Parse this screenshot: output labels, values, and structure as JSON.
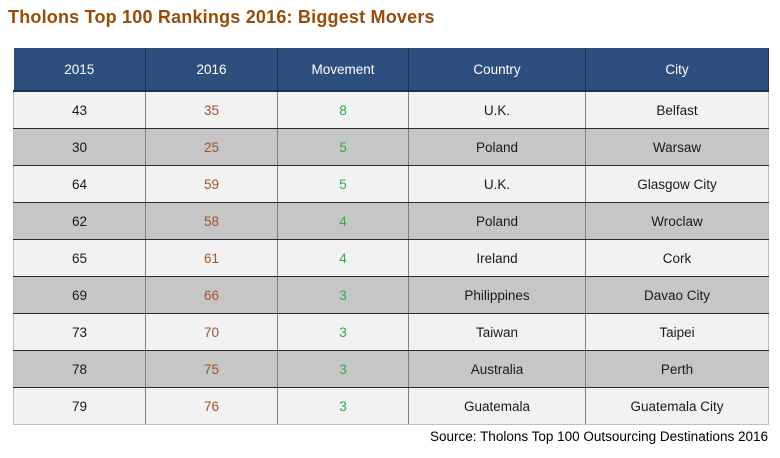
{
  "title": "Tholons Top 100 Rankings 2016: Biggest Movers",
  "source_note": "Source: Tholons Top 100 Outsourcing Destinations 2016",
  "colors": {
    "title_text": "#9A4B08",
    "header_bg": "#2E4E7E",
    "header_text": "#FFFFFF",
    "row_light": "#F2F2F2",
    "row_dark": "#C6C6C6",
    "rank_2016_text": "#A0522D",
    "movement_text": "#2FA94C",
    "default_text": "#1A1A1A"
  },
  "table": {
    "headers": [
      "2015",
      "2016",
      "Movement",
      "Country",
      "City"
    ],
    "rows": [
      [
        "43",
        "35",
        "8",
        "U.K.",
        "Belfast"
      ],
      [
        "30",
        "25",
        "5",
        "Poland",
        "Warsaw"
      ],
      [
        "64",
        "59",
        "5",
        "U.K.",
        "Glasgow City"
      ],
      [
        "62",
        "58",
        "4",
        "Poland",
        "Wroclaw"
      ],
      [
        "65",
        "61",
        "4",
        "Ireland",
        "Cork"
      ],
      [
        "69",
        "66",
        "3",
        "Philippines",
        "Davao City"
      ],
      [
        "73",
        "70",
        "3",
        "Taiwan",
        "Taipei"
      ],
      [
        "78",
        "75",
        "3",
        "Australia",
        "Perth"
      ],
      [
        "79",
        "76",
        "3",
        "Guatemala",
        "Guatemala City"
      ]
    ]
  },
  "chart_data": {
    "type": "table",
    "title": "Tholons Top 100 Rankings 2016: Biggest Movers",
    "columns": [
      "2015",
      "2016",
      "Movement",
      "Country",
      "City"
    ],
    "rows": [
      {
        "rank_2015": 43,
        "rank_2016": 35,
        "movement": 8,
        "country": "U.K.",
        "city": "Belfast"
      },
      {
        "rank_2015": 30,
        "rank_2016": 25,
        "movement": 5,
        "country": "Poland",
        "city": "Warsaw"
      },
      {
        "rank_2015": 64,
        "rank_2016": 59,
        "movement": 5,
        "country": "U.K.",
        "city": "Glasgow City"
      },
      {
        "rank_2015": 62,
        "rank_2016": 58,
        "movement": 4,
        "country": "Poland",
        "city": "Wroclaw"
      },
      {
        "rank_2015": 65,
        "rank_2016": 61,
        "movement": 4,
        "country": "Ireland",
        "city": "Cork"
      },
      {
        "rank_2015": 69,
        "rank_2016": 66,
        "movement": 3,
        "country": "Philippines",
        "city": "Davao City"
      },
      {
        "rank_2015": 73,
        "rank_2016": 70,
        "movement": 3,
        "country": "Taiwan",
        "city": "Taipei"
      },
      {
        "rank_2015": 78,
        "rank_2016": 75,
        "movement": 3,
        "country": "Australia",
        "city": "Perth"
      },
      {
        "rank_2015": 79,
        "rank_2016": 76,
        "movement": 3,
        "country": "Guatemala",
        "city": "Guatemala City"
      }
    ],
    "source": "Source: Tholons Top 100 Outsourcing Destinations 2016"
  }
}
